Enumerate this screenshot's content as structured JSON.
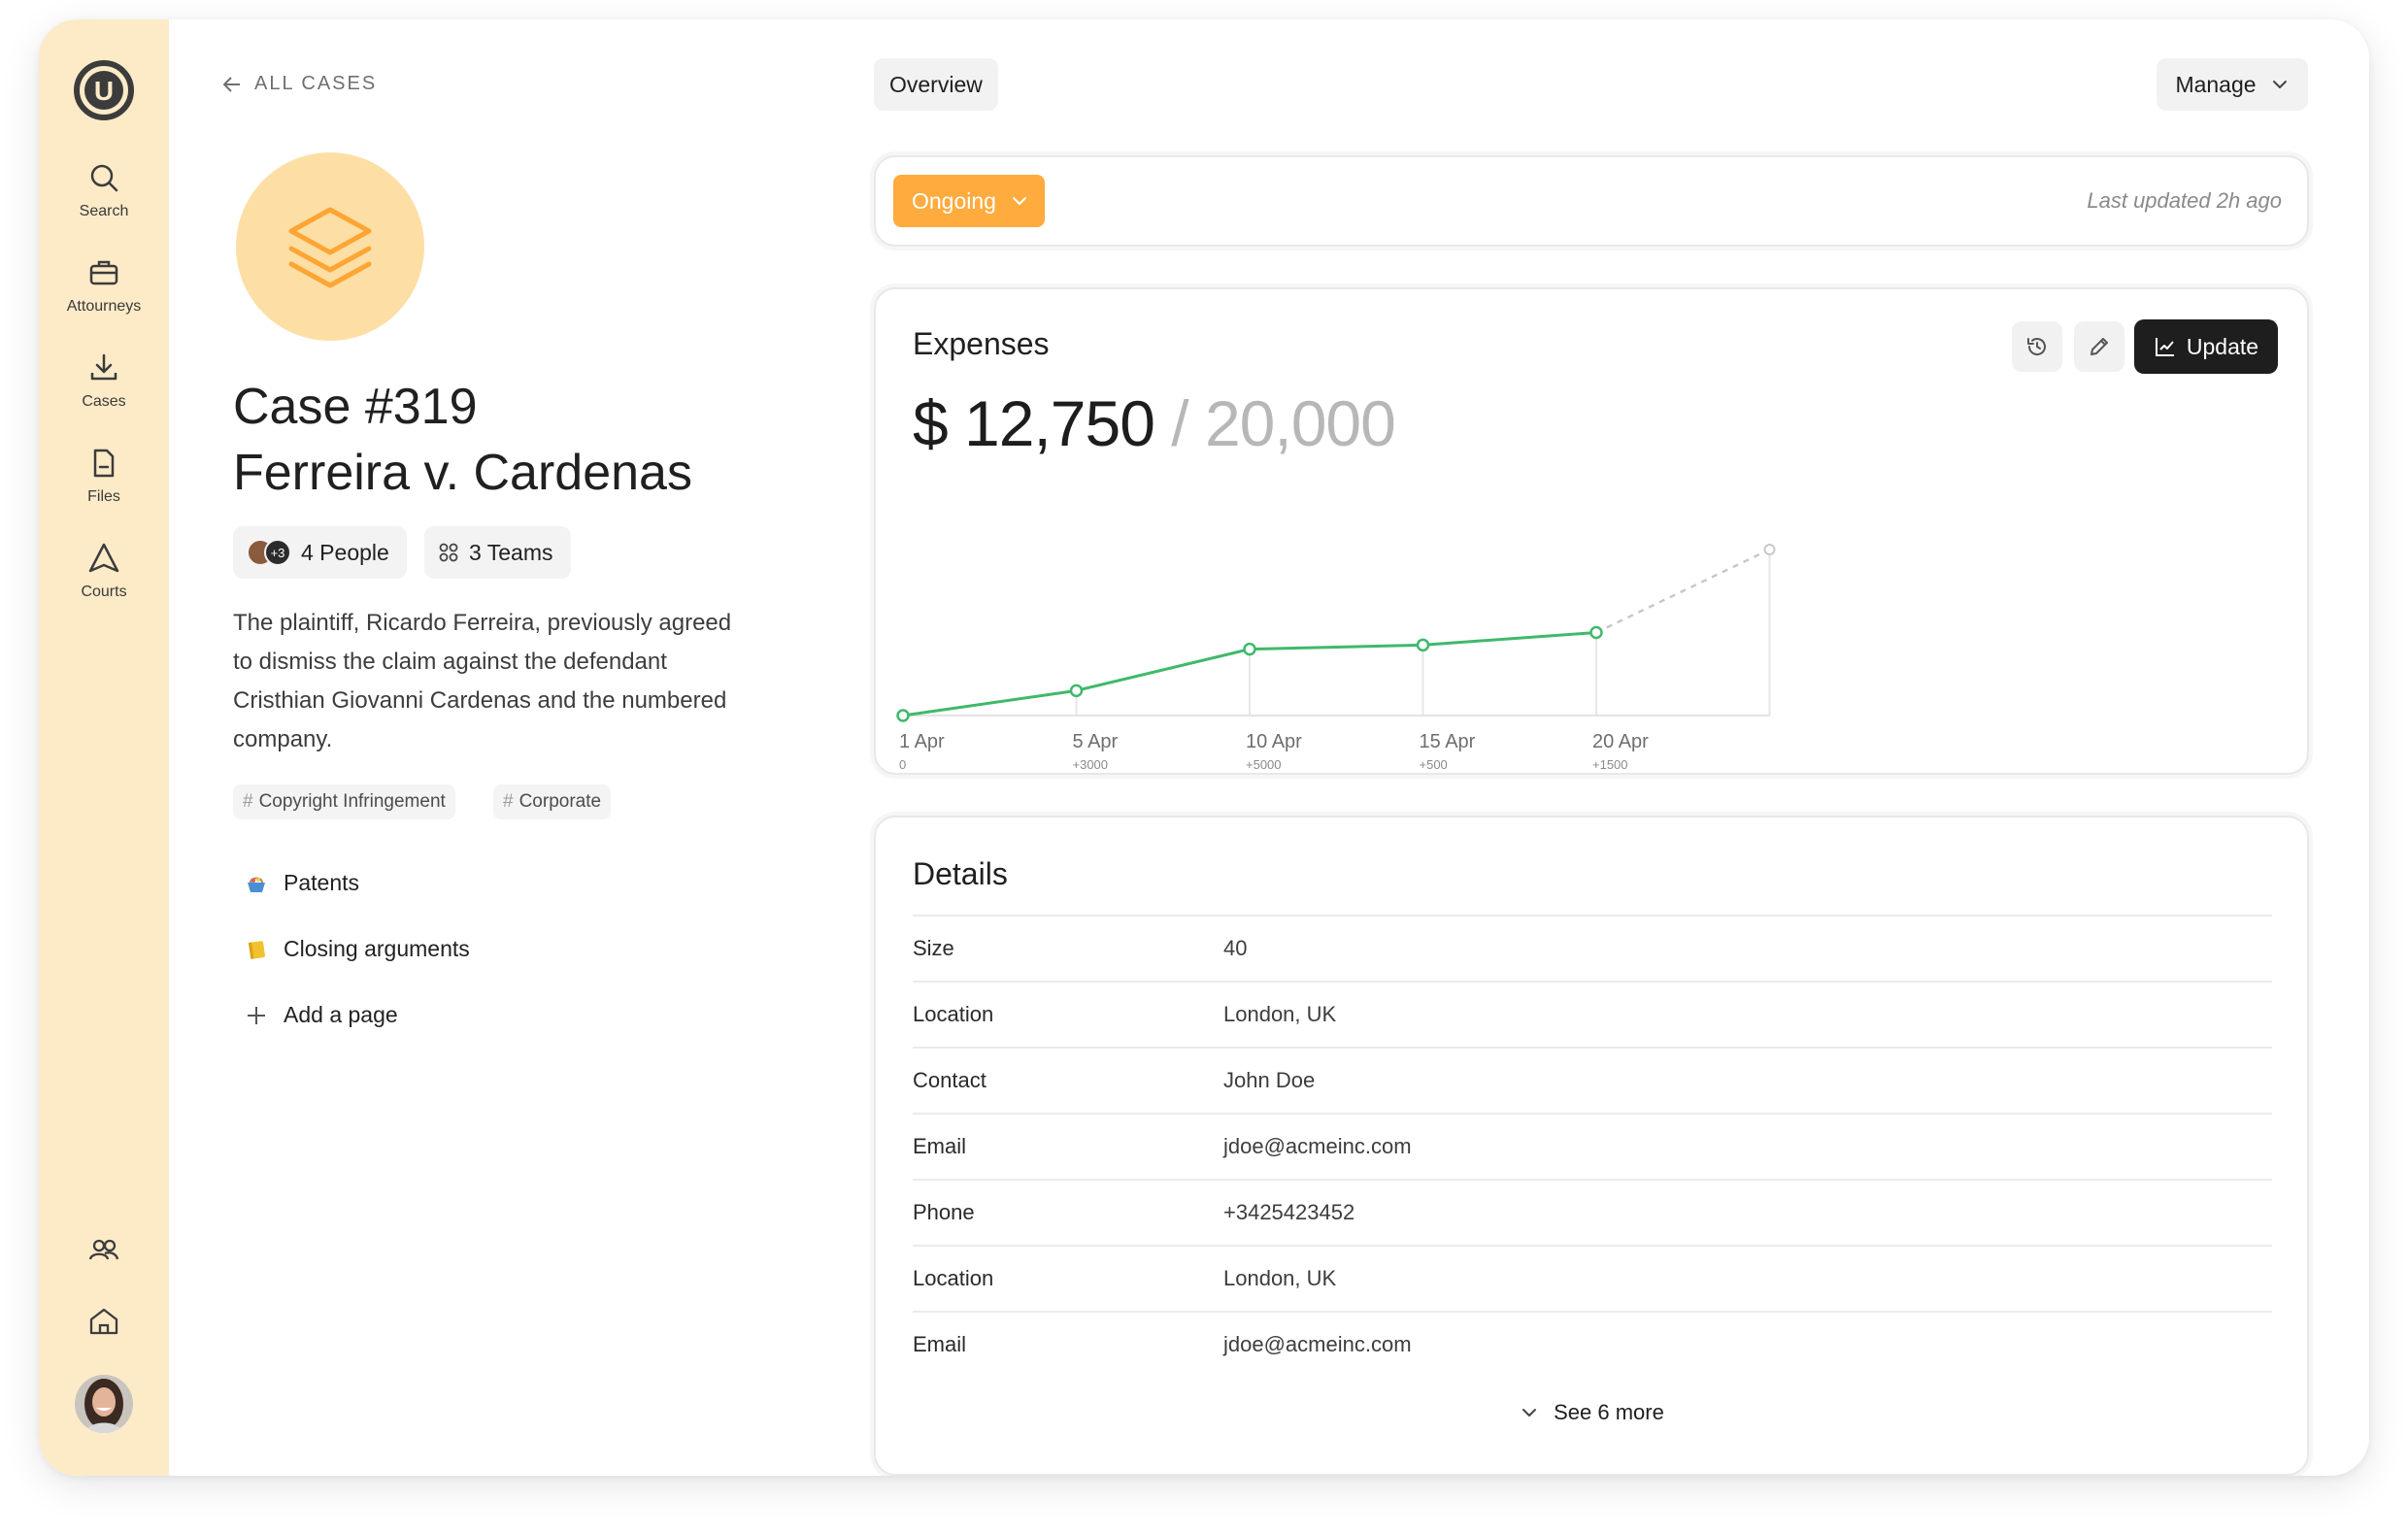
{
  "sidebar": {
    "logo_letter": "U",
    "items": [
      {
        "label": "Search",
        "icon": "search-icon"
      },
      {
        "label": "Attourneys",
        "icon": "briefcase-icon"
      },
      {
        "label": "Cases",
        "icon": "download-icon"
      },
      {
        "label": "Files",
        "icon": "file-icon"
      },
      {
        "label": "Courts",
        "icon": "navigation-triangle-icon"
      }
    ],
    "bottom_icons": [
      "users-icon",
      "home-icon"
    ]
  },
  "back_link": "ALL CASES",
  "case": {
    "number": "Case #319",
    "name": "Ferreira v. Cardenas",
    "people_more": "+3",
    "people": "4 People",
    "teams": "3 Teams",
    "description": "The plaintiff, Ricardo Ferreira, previously agreed to dismiss the claim against the defendant Cristhian Giovanni Cardenas and the numbered company.",
    "tags": [
      "Copyright Infringement",
      "Corporate"
    ],
    "pages": [
      "Patents",
      "Closing arguments"
    ],
    "add_page": "Add a page"
  },
  "header": {
    "overview": "Overview",
    "manage": "Manage"
  },
  "status": {
    "label": "Ongoing",
    "last_updated": "Last updated 2h ago",
    "color": "#ffab3e"
  },
  "expenses": {
    "title": "Expenses",
    "current": "$ 12,750",
    "total": "/ 20,000",
    "update_label": "Update"
  },
  "chart_data": {
    "type": "line",
    "x": [
      "1 Apr",
      "5 Apr",
      "10 Apr",
      "15 Apr",
      "20 Apr"
    ],
    "deltas": [
      "0",
      "+3000",
      "+5000",
      "+500",
      "+1500"
    ],
    "values": [
      0,
      3000,
      8000,
      8500,
      10000
    ],
    "projected_end": 20000,
    "line_color": "#3fb96b"
  },
  "details": {
    "title": "Details",
    "rows": [
      {
        "k": "Size",
        "v": "40"
      },
      {
        "k": "Location",
        "v": "London, UK"
      },
      {
        "k": "Contact",
        "v": "John Doe"
      },
      {
        "k": "Email",
        "v": "jdoe@acmeinc.com"
      },
      {
        "k": "Phone",
        "v": "+3425423452"
      },
      {
        "k": "Location",
        "v": "London, UK"
      },
      {
        "k": "Email",
        "v": "jdoe@acmeinc.com"
      }
    ],
    "see_more": "See 6 more"
  }
}
